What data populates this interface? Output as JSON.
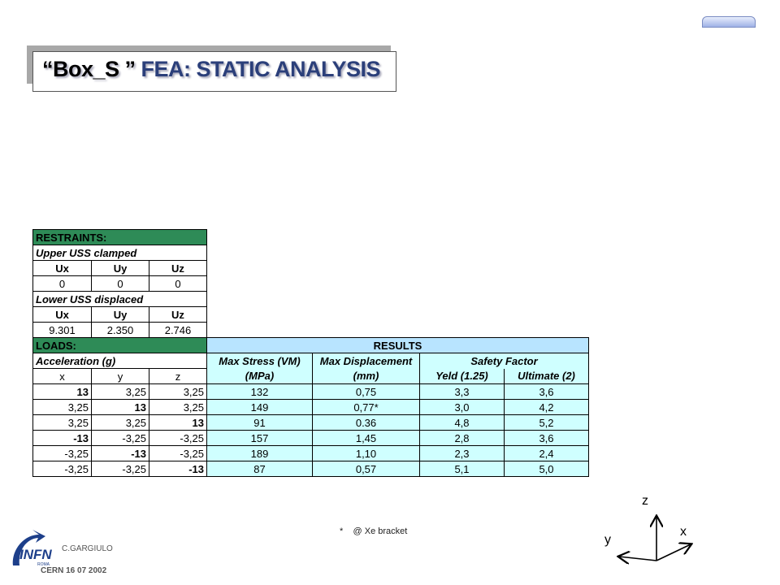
{
  "title": {
    "quote_part": "“Box_S ”",
    "rest": " FEA: STATIC ANALYSIS"
  },
  "restraints": {
    "header": "RESTRAINTS:",
    "upper_label": "Upper USS clamped",
    "upper_cols": [
      "Ux",
      "Uy",
      "Uz"
    ],
    "upper_vals": [
      "0",
      "0",
      "0"
    ],
    "lower_label": "Lower USS displaced",
    "lower_cols": [
      "Ux",
      "Uy",
      "Uz"
    ],
    "lower_vals": [
      "9.301",
      "2.350",
      "2.746"
    ]
  },
  "loads": {
    "header": "LOADS:",
    "accel_label": "Acceleration (g)",
    "cols": [
      "x",
      "y",
      "z"
    ]
  },
  "results": {
    "header": "RESULTS",
    "stress_h1": "Max Stress (VM)",
    "stress_h2": "(MPa)",
    "disp_h1": "Max Displacement",
    "disp_h2": "(mm)",
    "safety_h": "Safety Factor",
    "yeld_h": "Yeld (1.25)",
    "ult_h": "Ultimate (2)"
  },
  "rows": [
    {
      "x": "13",
      "y": "3,25",
      "z": "3,25",
      "stress": "132",
      "disp": "0,75",
      "yeld": "3,3",
      "ult": "3,6"
    },
    {
      "x": "3,25",
      "y": "13",
      "z": "3,25",
      "stress": "149",
      "disp": "0,77*",
      "yeld": "3,0",
      "ult": "4,2"
    },
    {
      "x": "3,25",
      "y": "3,25",
      "z": "13",
      "stress": "91",
      "disp": "0.36",
      "yeld": "4,8",
      "ult": "5,2"
    },
    {
      "x": "-13",
      "y": "-3,25",
      "z": "-3,25",
      "stress": "157",
      "disp": "1,45",
      "yeld": "2,8",
      "ult": "3,6"
    },
    {
      "x": "-3,25",
      "y": "-13",
      "z": "-3,25",
      "stress": "189",
      "disp": "1,10",
      "yeld": "2,3",
      "ult": "2,4"
    },
    {
      "x": "-3,25",
      "y": "-3,25",
      "z": "-13",
      "stress": "87",
      "disp": "0,57",
      "yeld": "5,1",
      "ult": "5,0"
    }
  ],
  "footnote": "*    @ Xe bracket",
  "author": "C.GARGIULO",
  "date": "CERN 16 07 2002",
  "logo": {
    "text": "INFN",
    "sub": "ROMA"
  },
  "axes": {
    "z": "z",
    "x": "x",
    "y": "y"
  },
  "colors": {
    "header_green": "#2e8b57",
    "results_blue": "#b8e4ff",
    "results_cyan": "#cfffff",
    "title_blue": "#2b3f7a"
  }
}
